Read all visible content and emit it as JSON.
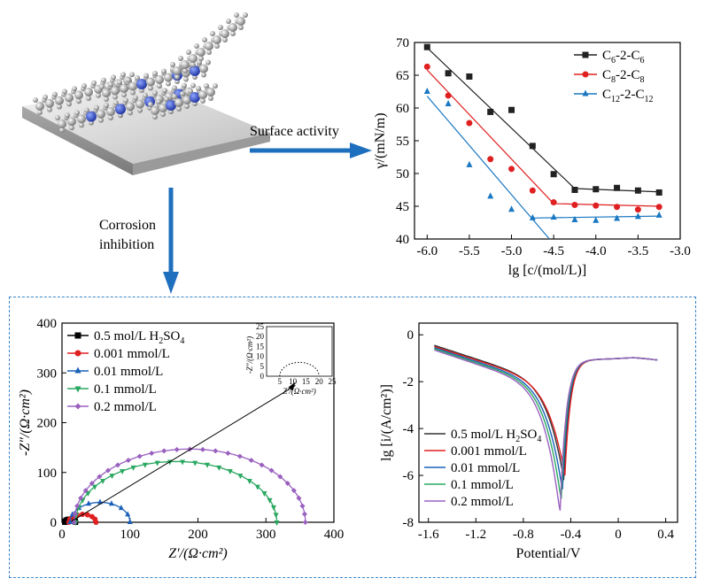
{
  "labels": {
    "surface_activity": "Surface activity",
    "corrosion_line1": "Corrosion",
    "corrosion_line2": "inhibition"
  },
  "colors": {
    "arrow": "#1f6fbf",
    "dash_box": "#3a86c8"
  },
  "chart_data": [
    {
      "id": "surface-tension",
      "type": "scatter",
      "xlabel": "lg [c/(mol/L)]",
      "ylabel": "γ/(mN/m)",
      "xlim": [
        -6.15,
        -3.0
      ],
      "ylim": [
        40,
        70
      ],
      "xticks": [
        -6.0,
        -5.5,
        -5.0,
        -4.5,
        -4.0,
        -3.5,
        -3.0
      ],
      "xtick_labels": [
        "-6.0",
        "-5.5",
        "-5.0",
        "-4.5",
        "-4.0",
        "-3.5",
        "-3.0"
      ],
      "yticks": [
        40,
        45,
        50,
        55,
        60,
        65,
        70
      ],
      "ytick_labels": [
        "40",
        "45",
        "50",
        "55",
        "60",
        "65",
        "70"
      ],
      "legend": {
        "position": "top-right"
      },
      "series": [
        {
          "name_main": "C",
          "name_sub1": "6",
          "name_mid": "-2-C",
          "name_sub2": "6",
          "color": "#222222",
          "marker": "square",
          "points": [
            [
              -6.0,
              69.3
            ],
            [
              -5.75,
              65.3
            ],
            [
              -5.5,
              64.8
            ],
            [
              -5.25,
              59.4
            ],
            [
              -5.0,
              59.7
            ],
            [
              -4.75,
              54.2
            ],
            [
              -4.5,
              49.9
            ],
            [
              -4.25,
              47.5
            ],
            [
              -4.0,
              47.6
            ],
            [
              -3.75,
              47.8
            ],
            [
              -3.5,
              47.4
            ],
            [
              -3.25,
              47.1
            ]
          ],
          "fit": [
            [
              [
                -6.0,
                69.2
              ],
              [
                -4.25,
                47.7
              ]
            ],
            [
              [
                -4.25,
                47.7
              ],
              [
                -3.25,
                47.2
              ]
            ]
          ]
        },
        {
          "name_main": "C",
          "name_sub1": "8",
          "name_mid": "-2-C",
          "name_sub2": "8",
          "color": "#e02020",
          "marker": "circle",
          "points": [
            [
              -6.0,
              66.3
            ],
            [
              -5.75,
              61.9
            ],
            [
              -5.5,
              57.7
            ],
            [
              -5.25,
              52.2
            ],
            [
              -5.0,
              50.7
            ],
            [
              -4.75,
              47.4
            ],
            [
              -4.5,
              45.6
            ],
            [
              -4.25,
              45.2
            ],
            [
              -4.0,
              45.1
            ],
            [
              -3.75,
              44.9
            ],
            [
              -3.5,
              44.5
            ],
            [
              -3.25,
              44.9
            ]
          ],
          "fit": [
            [
              [
                -6.0,
                65.8
              ],
              [
                -4.5,
                45.4
              ]
            ],
            [
              [
                -4.5,
                45.4
              ],
              [
                -3.25,
                45.0
              ]
            ]
          ]
        },
        {
          "name_main": "C",
          "name_sub1": "12",
          "name_mid": "-2-C",
          "name_sub2": "12",
          "color": "#1a78c2",
          "marker": "triangle",
          "points": [
            [
              -6.0,
              62.5
            ],
            [
              -5.75,
              60.6
            ],
            [
              -5.5,
              51.3
            ],
            [
              -5.25,
              46.5
            ],
            [
              -5.0,
              44.5
            ],
            [
              -4.75,
              43.2
            ],
            [
              -4.5,
              43.3
            ],
            [
              -4.25,
              42.9
            ],
            [
              -4.0,
              42.8
            ],
            [
              -3.75,
              43.1
            ],
            [
              -3.5,
              43.4
            ],
            [
              -3.25,
              43.6
            ]
          ],
          "fit": [
            [
              [
                -6.0,
                61.8
              ],
              [
                -4.55,
                40.0
              ]
            ],
            [
              [
                -4.75,
                43.2
              ],
              [
                -3.25,
                43.5
              ]
            ]
          ]
        }
      ]
    },
    {
      "id": "nyquist",
      "type": "scatter",
      "xlabel": "Z′/(Ω·cm²)",
      "ylabel": "-Z″/(Ω·cm²)",
      "xlim": [
        0,
        400
      ],
      "ylim": [
        0,
        400
      ],
      "xticks": [
        0,
        100,
        200,
        300,
        400
      ],
      "yticks": [
        0,
        100,
        200,
        300,
        400
      ],
      "legend": {
        "position": "top-left"
      },
      "series": [
        {
          "label": "0.5 mol/L H",
          "sub": "2",
          "tail": "SO",
          "sub2": "4",
          "color": "#000000",
          "marker": "square",
          "center": 12,
          "radius": 8
        },
        {
          "label": "0.001 mmol/L",
          "color": "#e02020",
          "marker": "circle",
          "center": 30,
          "radius": 20
        },
        {
          "label": "0.01 mmol/L",
          "color": "#1a60b8",
          "marker": "triangle",
          "center": 56,
          "radius": 44,
          "peak": 40
        },
        {
          "label": "0.1 mmol/L",
          "color": "#2aa860",
          "marker": "triangle-down",
          "center": 168,
          "radius": 148,
          "peak": 122
        },
        {
          "label": "0.2 mmol/L",
          "color": "#9a60c0",
          "marker": "diamond",
          "center": 188,
          "radius": 170,
          "peak": 147
        }
      ],
      "inset": {
        "xlabel": "Z′/(Ω·cm²)",
        "ylabel": "-Z″/(Ω·cm²)",
        "xticks": [
          "5",
          "10",
          "15",
          "20",
          "25"
        ],
        "yticks": [
          "0",
          "5",
          "10",
          "15",
          "20",
          "25"
        ],
        "xlim": [
          0,
          25
        ],
        "ylim": [
          0,
          25
        ],
        "arc": {
          "center": 12.5,
          "radius": 7.5,
          "peak": 7
        }
      }
    },
    {
      "id": "polarization",
      "type": "line",
      "xlabel": "Potential/V",
      "ylabel": "lg [i/(A/cm²)]",
      "xlim": [
        -1.68,
        0.5
      ],
      "ylim": [
        -8,
        0.5
      ],
      "xticks": [
        -1.6,
        -1.2,
        -0.8,
        -0.4,
        0,
        0.4
      ],
      "xtick_labels": [
        "-1.6",
        "-1.2",
        "-0.8",
        "-0.4",
        "0",
        "0.4"
      ],
      "yticks": [
        0,
        -2,
        -4,
        -6,
        -8
      ],
      "ytick_labels": [
        "0",
        "-2",
        "-4",
        "-6",
        "-8"
      ],
      "legend": {
        "position": "bottom-left"
      },
      "series": [
        {
          "label": "0.5 mol/L H",
          "sub": "2",
          "tail": "SO",
          "sub2": "4",
          "color": "#333333",
          "ecorr": -0.46,
          "dip": -6.2,
          "anodic_top": -0.85
        },
        {
          "label": "0.001 mmol/L",
          "color": "#e02020",
          "ecorr": -0.45,
          "dip": -6.0,
          "anodic_top": -0.8
        },
        {
          "label": "0.01 mmol/L",
          "color": "#1a60b8",
          "ecorr": -0.47,
          "dip": -6.6,
          "anodic_top": -0.85
        },
        {
          "label": "0.1 mmol/L",
          "color": "#2aa860",
          "ecorr": -0.48,
          "dip": -7.0,
          "anodic_top": -0.9
        },
        {
          "label": "0.2 mmol/L",
          "color": "#9a60c0",
          "ecorr": -0.49,
          "dip": -7.5,
          "anodic_top": -0.95
        }
      ]
    }
  ]
}
